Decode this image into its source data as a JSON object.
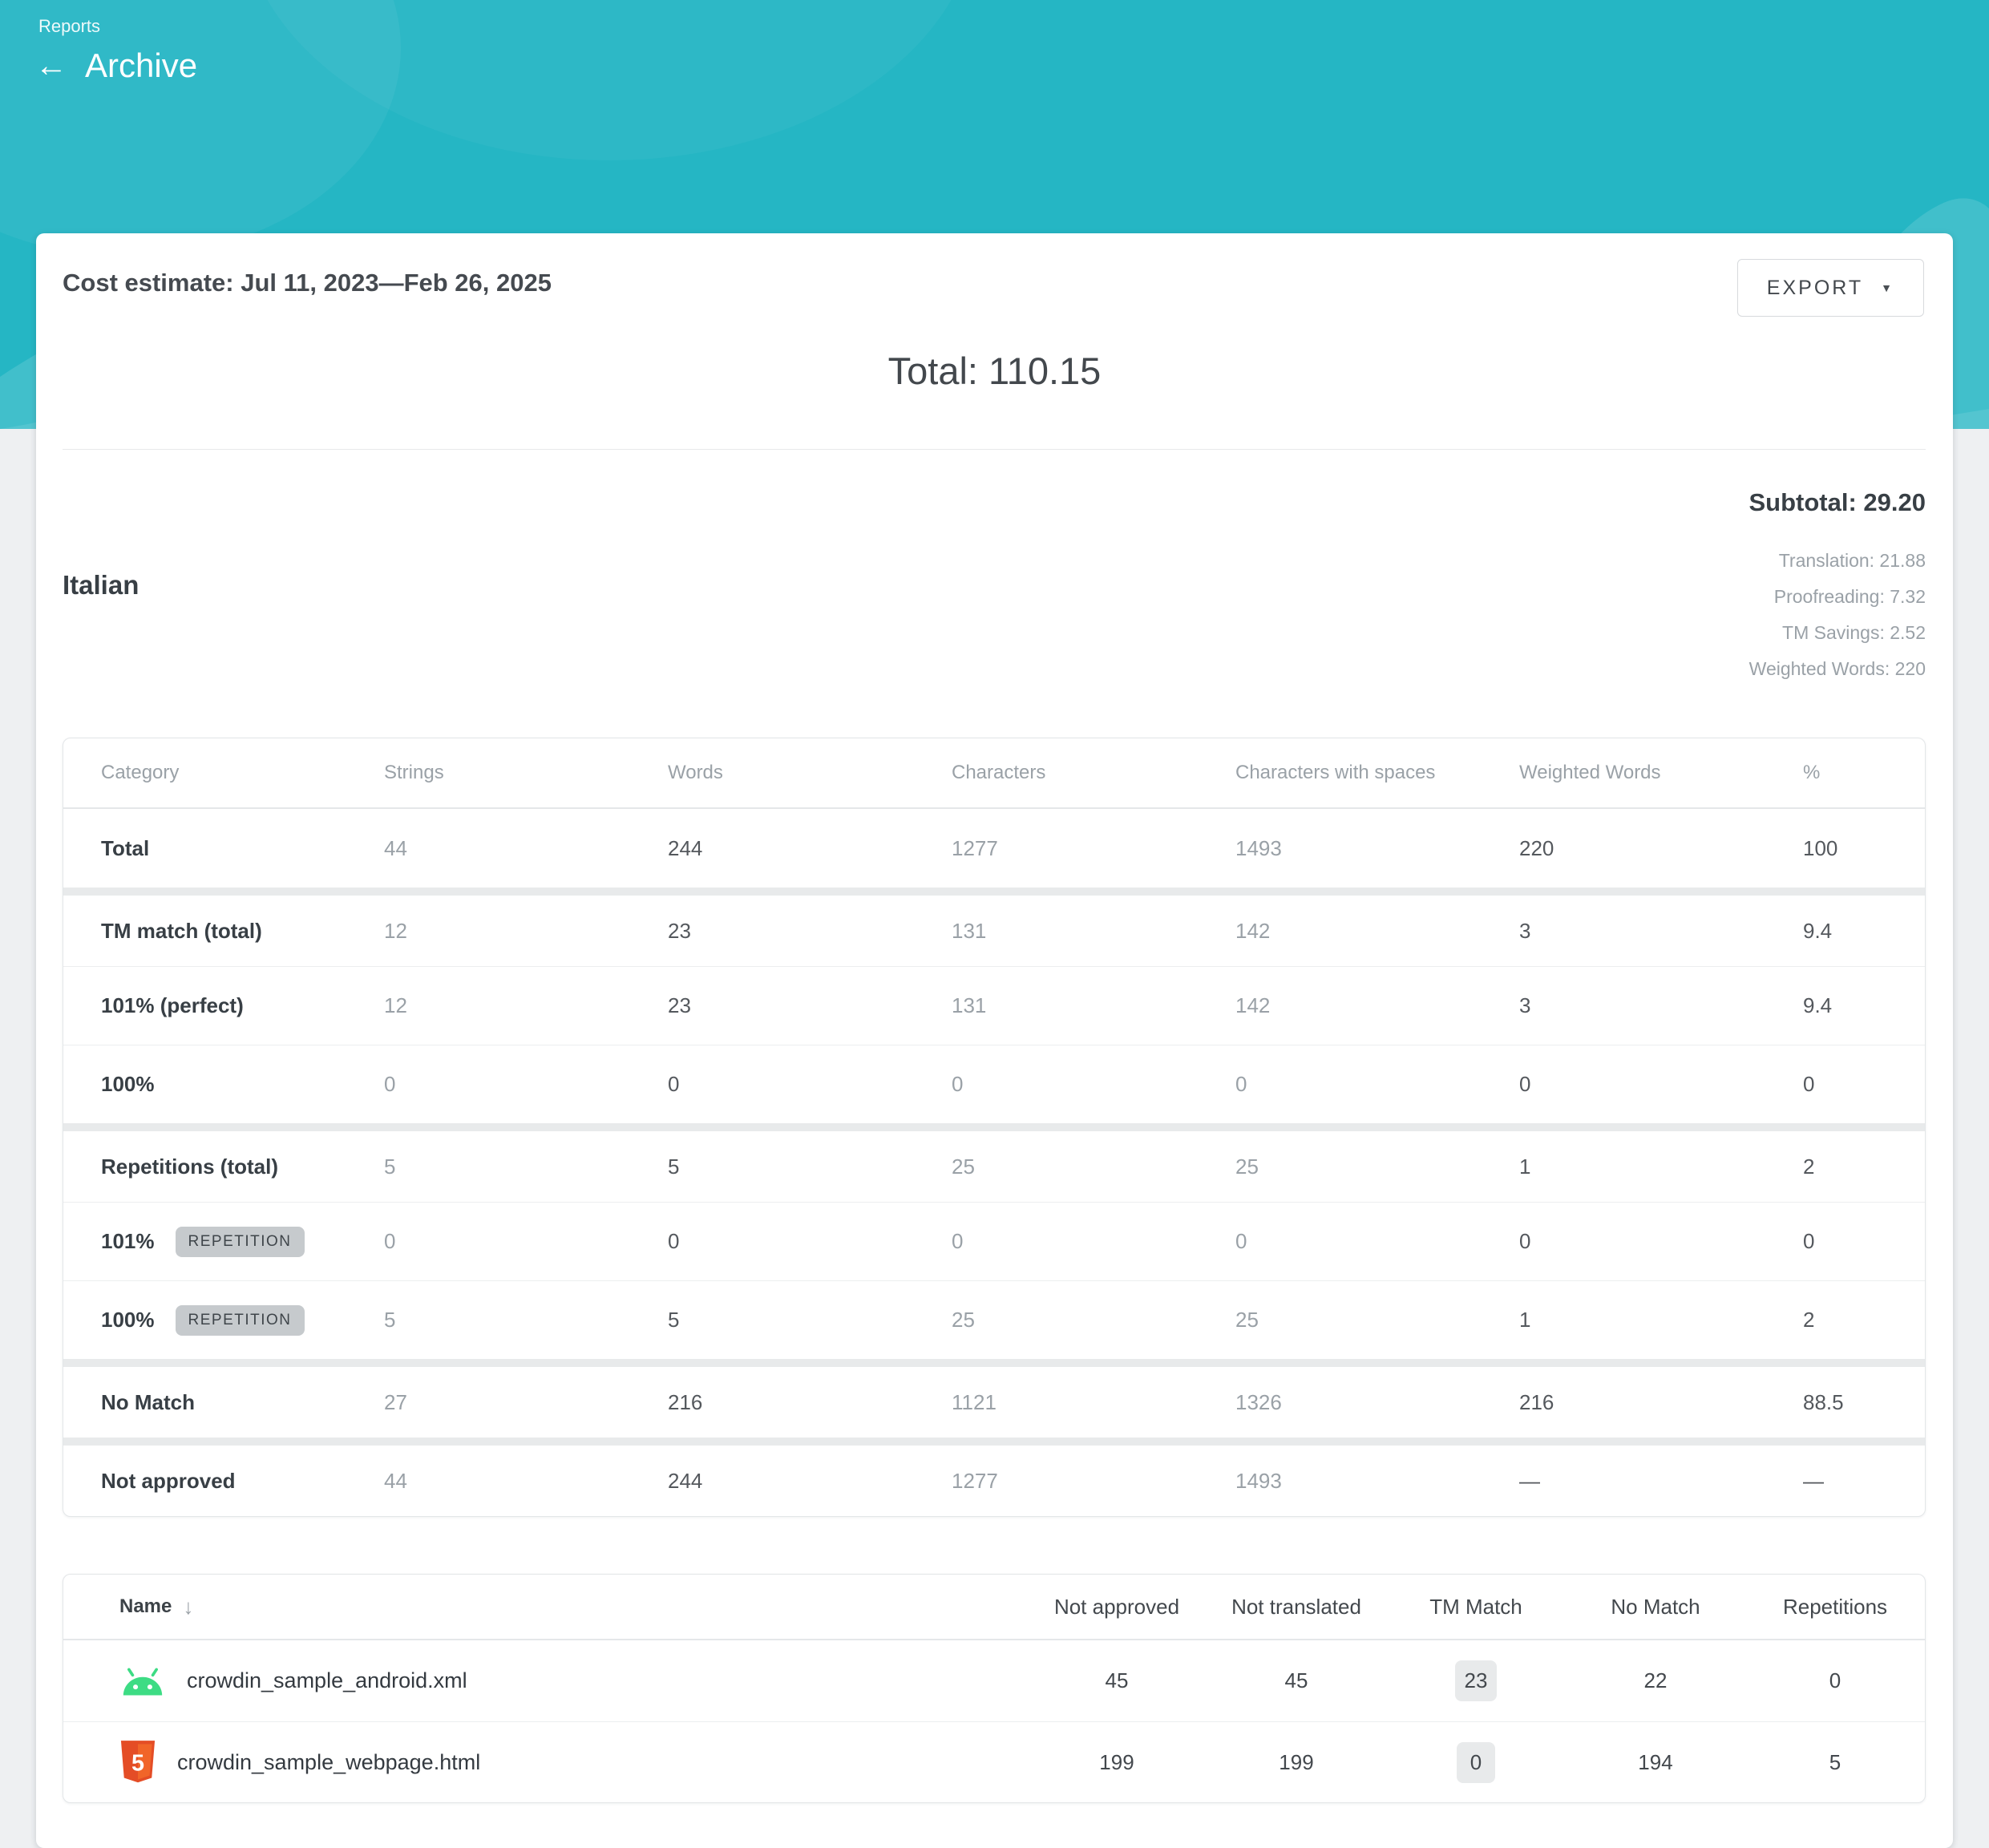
{
  "colors": {
    "header_teal": "#25b6c4",
    "android_green": "#3ddc84",
    "html5_orange": "#e44d26",
    "repetition_badge_gray": "#c6cacd",
    "tm_badge_gray": "#e8eaeb"
  },
  "header": {
    "breadcrumb": "Reports",
    "back_icon": "←",
    "title": "Archive"
  },
  "toolbar": {
    "export_label": "EXPORT",
    "caret_icon": "▼"
  },
  "summary": {
    "title": "Cost estimate: Jul 11, 2023—Feb 26, 2025",
    "total": "Total: 110.15"
  },
  "language": {
    "name": "Italian",
    "subtotal": "Subtotal: 29.20",
    "details": [
      "Translation: 21.88",
      "Proofreading: 7.32",
      "TM Savings: 2.52",
      "Weighted Words: 220"
    ]
  },
  "category_table": {
    "columns": [
      "Category",
      "Strings",
      "Words",
      "Characters",
      "Characters with spaces",
      "Weighted Words",
      "%"
    ],
    "rows": [
      {
        "category": "Total",
        "group": false,
        "badge": null,
        "values": [
          "44",
          "244",
          "1277",
          "1493",
          "220",
          "100"
        ]
      },
      {
        "category": "TM match (total)",
        "group": true,
        "badge": null,
        "values": [
          "12",
          "23",
          "131",
          "142",
          "3",
          "9.4"
        ]
      },
      {
        "category": "101% (perfect)",
        "group": false,
        "badge": null,
        "values": [
          "12",
          "23",
          "131",
          "142",
          "3",
          "9.4"
        ]
      },
      {
        "category": "100%",
        "group": false,
        "badge": null,
        "values": [
          "0",
          "0",
          "0",
          "0",
          "0",
          "0"
        ]
      },
      {
        "category": "Repetitions (total)",
        "group": true,
        "badge": null,
        "values": [
          "5",
          "5",
          "25",
          "25",
          "1",
          "2"
        ]
      },
      {
        "category": "101%",
        "group": false,
        "badge": "REPETITION",
        "values": [
          "0",
          "0",
          "0",
          "0",
          "0",
          "0"
        ]
      },
      {
        "category": "100%",
        "group": false,
        "badge": "REPETITION",
        "values": [
          "5",
          "5",
          "25",
          "25",
          "1",
          "2"
        ]
      },
      {
        "category": "No Match",
        "group": true,
        "badge": null,
        "values": [
          "27",
          "216",
          "1121",
          "1326",
          "216",
          "88.5"
        ]
      },
      {
        "category": "Not approved",
        "group": true,
        "badge": null,
        "values": [
          "44",
          "244",
          "1277",
          "1493",
          "—",
          "—"
        ]
      }
    ]
  },
  "file_table": {
    "name_column": "Name",
    "sort_icon": "↓",
    "columns": [
      "Not approved",
      "Not translated",
      "TM Match",
      "No Match",
      "Repetitions"
    ],
    "rows": [
      {
        "name": "crowdin_sample_android.xml",
        "icon": "android-icon",
        "values": [
          "45",
          "45",
          "23",
          "22",
          "0"
        ]
      },
      {
        "name": "crowdin_sample_webpage.html",
        "icon": "html5-icon",
        "values": [
          "199",
          "199",
          "0",
          "194",
          "5"
        ]
      }
    ]
  }
}
